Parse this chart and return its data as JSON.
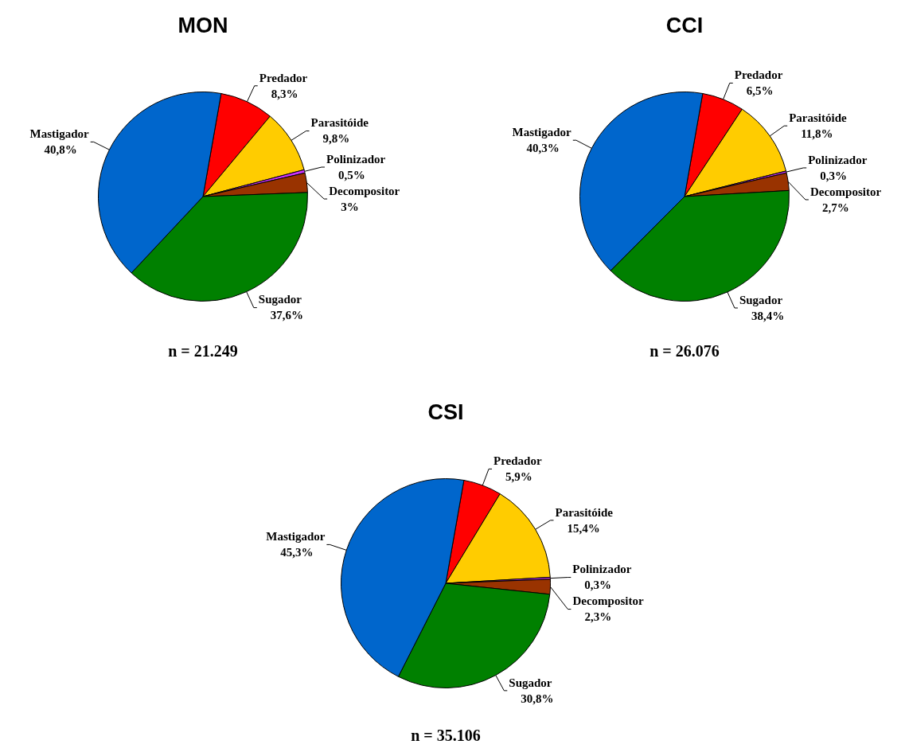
{
  "chart_data": [
    {
      "type": "pie",
      "title": "MON",
      "categories": [
        "Predador",
        "Parasitóide",
        "Polinizador",
        "Decompositor",
        "Sugador",
        "Mastigador"
      ],
      "values": [
        8.3,
        9.8,
        0.5,
        3,
        37.6,
        40.8
      ],
      "value_labels": [
        "8,3%",
        "9,8%",
        "0,5%",
        "3%",
        "37,6%",
        "40,8%"
      ],
      "colors": [
        "#ff0000",
        "#ffcc00",
        "#cc33ff",
        "#993300",
        "#008000",
        "#0066cc"
      ],
      "annotations": [
        "n = 21.249"
      ]
    },
    {
      "type": "pie",
      "title": "CCI",
      "categories": [
        "Predador",
        "Parasitóide",
        "Polinizador",
        "Decompositor",
        "Sugador",
        "Mastigador"
      ],
      "values": [
        6.5,
        11.8,
        0.3,
        2.7,
        38.4,
        40.3
      ],
      "value_labels": [
        "6,5%",
        "11,8%",
        "0,3%",
        "2,7%",
        "38,4%",
        "40,3%"
      ],
      "colors": [
        "#ff0000",
        "#ffcc00",
        "#cc33ff",
        "#993300",
        "#008000",
        "#0066cc"
      ],
      "annotations": [
        "n = 26.076"
      ]
    },
    {
      "type": "pie",
      "title": "CSI",
      "categories": [
        "Predador",
        "Parasitóide",
        "Polinizador",
        "Decompositor",
        "Sugador",
        "Mastigador"
      ],
      "values": [
        5.9,
        15.4,
        0.3,
        2.3,
        30.8,
        45.3
      ],
      "value_labels": [
        "5,9%",
        "15,4%",
        "0,3%",
        "2,3%",
        "30,8%",
        "45,3%"
      ],
      "colors": [
        "#ff0000",
        "#ffcc00",
        "#cc33ff",
        "#993300",
        "#008000",
        "#0066cc"
      ],
      "annotations": [
        "n = 35.106"
      ]
    }
  ]
}
